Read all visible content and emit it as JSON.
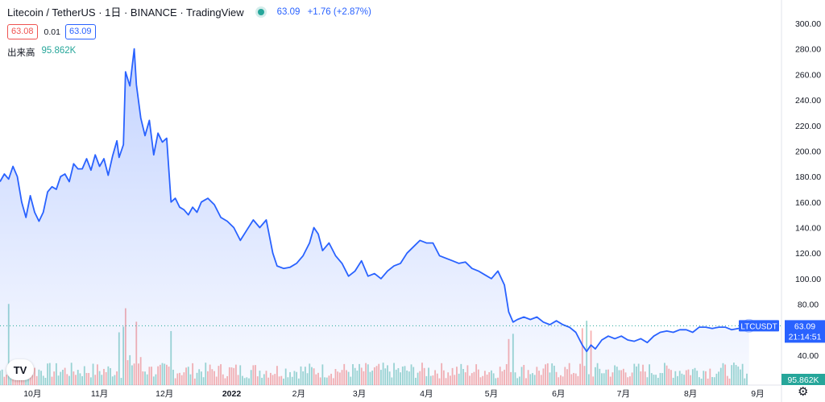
{
  "header": {
    "symbol_title": "Litecoin / TetherUS · 1日 · BINANCE · TradingView",
    "last": "63.09",
    "change": "+1.76 (+2.87%)"
  },
  "quote": {
    "bid": "63.08",
    "spread": "0.01",
    "ask": "63.09"
  },
  "volume": {
    "label": "出来高",
    "value": "95.862K"
  },
  "price_label": {
    "symbol": "LTCUSDT",
    "price": "63.09",
    "countdown": "21:14:51"
  },
  "volume_badge": "95.862K",
  "logo_text": "TV",
  "settings_icon": "gear-icon",
  "colors": {
    "line": "#2962ff",
    "up": "#26a69a",
    "down": "#ef5350",
    "area": "#2962ff"
  },
  "chart_data": {
    "type": "area",
    "title": "Litecoin / TetherUS · 1日 · BINANCE",
    "ylim": [
      30,
      305
    ],
    "y_ticks": [
      40,
      60,
      80,
      100,
      120,
      140,
      160,
      180,
      200,
      220,
      240,
      260,
      280,
      300
    ],
    "y_tick_labels": [
      "40.00",
      "60.00",
      "80.00",
      "100.00",
      "120.00",
      "140.00",
      "160.00",
      "180.00",
      "200.00",
      "220.00",
      "240.00",
      "260.00",
      "280.00",
      "300.00"
    ],
    "x_range": [
      "2021-09-16",
      "2022-09-12"
    ],
    "x_ticks": [
      {
        "date": "2021-10-01",
        "label": "10月"
      },
      {
        "date": "2021-11-01",
        "label": "11月"
      },
      {
        "date": "2021-12-01",
        "label": "12月"
      },
      {
        "date": "2022-01-01",
        "label": "2022"
      },
      {
        "date": "2022-02-01",
        "label": "2月"
      },
      {
        "date": "2022-03-01",
        "label": "3月"
      },
      {
        "date": "2022-04-01",
        "label": "4月"
      },
      {
        "date": "2022-05-01",
        "label": "5月"
      },
      {
        "date": "2022-06-01",
        "label": "6月"
      },
      {
        "date": "2022-07-01",
        "label": "7月"
      },
      {
        "date": "2022-08-01",
        "label": "8月"
      },
      {
        "date": "2022-09-01",
        "label": "9月"
      }
    ],
    "series": [
      {
        "name": "LTCUSDT",
        "points": [
          [
            "2021-09-16",
            176
          ],
          [
            "2021-09-18",
            182
          ],
          [
            "2021-09-20",
            178
          ],
          [
            "2021-09-22",
            188
          ],
          [
            "2021-09-24",
            180
          ],
          [
            "2021-09-26",
            160
          ],
          [
            "2021-09-28",
            148
          ],
          [
            "2021-09-30",
            165
          ],
          [
            "2021-10-02",
            152
          ],
          [
            "2021-10-04",
            145
          ],
          [
            "2021-10-06",
            152
          ],
          [
            "2021-10-08",
            168
          ],
          [
            "2021-10-10",
            172
          ],
          [
            "2021-10-12",
            170
          ],
          [
            "2021-10-14",
            180
          ],
          [
            "2021-10-16",
            182
          ],
          [
            "2021-10-18",
            176
          ],
          [
            "2021-10-20",
            190
          ],
          [
            "2021-10-22",
            186
          ],
          [
            "2021-10-24",
            186
          ],
          [
            "2021-10-26",
            194
          ],
          [
            "2021-10-28",
            185
          ],
          [
            "2021-10-30",
            197
          ],
          [
            "2021-11-01",
            188
          ],
          [
            "2021-11-03",
            194
          ],
          [
            "2021-11-05",
            181
          ],
          [
            "2021-11-07",
            196
          ],
          [
            "2021-11-09",
            208
          ],
          [
            "2021-11-10",
            195
          ],
          [
            "2021-11-12",
            205
          ],
          [
            "2021-11-13",
            262
          ],
          [
            "2021-11-15",
            251
          ],
          [
            "2021-11-17",
            280
          ],
          [
            "2021-11-18",
            252
          ],
          [
            "2021-11-20",
            226
          ],
          [
            "2021-11-22",
            212
          ],
          [
            "2021-11-24",
            224
          ],
          [
            "2021-11-26",
            197
          ],
          [
            "2021-11-28",
            214
          ],
          [
            "2021-11-30",
            207
          ],
          [
            "2021-12-02",
            210
          ],
          [
            "2021-12-04",
            160
          ],
          [
            "2021-12-06",
            163
          ],
          [
            "2021-12-08",
            156
          ],
          [
            "2021-12-10",
            154
          ],
          [
            "2021-12-12",
            150
          ],
          [
            "2021-12-14",
            156
          ],
          [
            "2021-12-16",
            152
          ],
          [
            "2021-12-18",
            160
          ],
          [
            "2021-12-21",
            163
          ],
          [
            "2021-12-24",
            158
          ],
          [
            "2021-12-27",
            148
          ],
          [
            "2021-12-30",
            145
          ],
          [
            "2022-01-02",
            140
          ],
          [
            "2022-01-05",
            130
          ],
          [
            "2022-01-08",
            138
          ],
          [
            "2022-01-11",
            146
          ],
          [
            "2022-01-14",
            140
          ],
          [
            "2022-01-17",
            146
          ],
          [
            "2022-01-20",
            120
          ],
          [
            "2022-01-22",
            110
          ],
          [
            "2022-01-25",
            108
          ],
          [
            "2022-01-28",
            109
          ],
          [
            "2022-01-31",
            112
          ],
          [
            "2022-02-03",
            118
          ],
          [
            "2022-02-06",
            128
          ],
          [
            "2022-02-08",
            140
          ],
          [
            "2022-02-10",
            135
          ],
          [
            "2022-02-12",
            122
          ],
          [
            "2022-02-15",
            128
          ],
          [
            "2022-02-18",
            118
          ],
          [
            "2022-02-21",
            112
          ],
          [
            "2022-02-24",
            102
          ],
          [
            "2022-02-27",
            106
          ],
          [
            "2022-03-02",
            114
          ],
          [
            "2022-03-05",
            102
          ],
          [
            "2022-03-08",
            104
          ],
          [
            "2022-03-11",
            100
          ],
          [
            "2022-03-14",
            106
          ],
          [
            "2022-03-17",
            110
          ],
          [
            "2022-03-20",
            112
          ],
          [
            "2022-03-23",
            120
          ],
          [
            "2022-03-26",
            125
          ],
          [
            "2022-03-29",
            130
          ],
          [
            "2022-04-01",
            128
          ],
          [
            "2022-04-04",
            128
          ],
          [
            "2022-04-07",
            118
          ],
          [
            "2022-04-10",
            116
          ],
          [
            "2022-04-13",
            114
          ],
          [
            "2022-04-16",
            112
          ],
          [
            "2022-04-19",
            113
          ],
          [
            "2022-04-22",
            108
          ],
          [
            "2022-04-25",
            106
          ],
          [
            "2022-04-28",
            103
          ],
          [
            "2022-05-01",
            100
          ],
          [
            "2022-05-04",
            106
          ],
          [
            "2022-05-07",
            95
          ],
          [
            "2022-05-09",
            74
          ],
          [
            "2022-05-11",
            66
          ],
          [
            "2022-05-13",
            68
          ],
          [
            "2022-05-16",
            70
          ],
          [
            "2022-05-19",
            68
          ],
          [
            "2022-05-22",
            70
          ],
          [
            "2022-05-25",
            66
          ],
          [
            "2022-05-28",
            64
          ],
          [
            "2022-05-31",
            67
          ],
          [
            "2022-06-03",
            64
          ],
          [
            "2022-06-06",
            62
          ],
          [
            "2022-06-09",
            58
          ],
          [
            "2022-06-12",
            48
          ],
          [
            "2022-06-14",
            43
          ],
          [
            "2022-06-16",
            48
          ],
          [
            "2022-06-18",
            45
          ],
          [
            "2022-06-21",
            52
          ],
          [
            "2022-06-24",
            55
          ],
          [
            "2022-06-27",
            53
          ],
          [
            "2022-06-30",
            55
          ],
          [
            "2022-07-03",
            52
          ],
          [
            "2022-07-06",
            51
          ],
          [
            "2022-07-09",
            53
          ],
          [
            "2022-07-12",
            50
          ],
          [
            "2022-07-15",
            55
          ],
          [
            "2022-07-18",
            58
          ],
          [
            "2022-07-21",
            59
          ],
          [
            "2022-07-24",
            58
          ],
          [
            "2022-07-27",
            60
          ],
          [
            "2022-07-30",
            60
          ],
          [
            "2022-08-02",
            58
          ],
          [
            "2022-08-05",
            62
          ],
          [
            "2022-08-08",
            62
          ],
          [
            "2022-08-11",
            61
          ],
          [
            "2022-08-14",
            62
          ],
          [
            "2022-08-17",
            62
          ],
          [
            "2022-08-20",
            60
          ],
          [
            "2022-08-23",
            61
          ],
          [
            "2022-08-26",
            62
          ],
          [
            "2022-08-28",
            63.09
          ]
        ]
      }
    ],
    "volume_series": {
      "name": "出来高",
      "note": "relative daily volume bars, colored by candle direction"
    }
  }
}
